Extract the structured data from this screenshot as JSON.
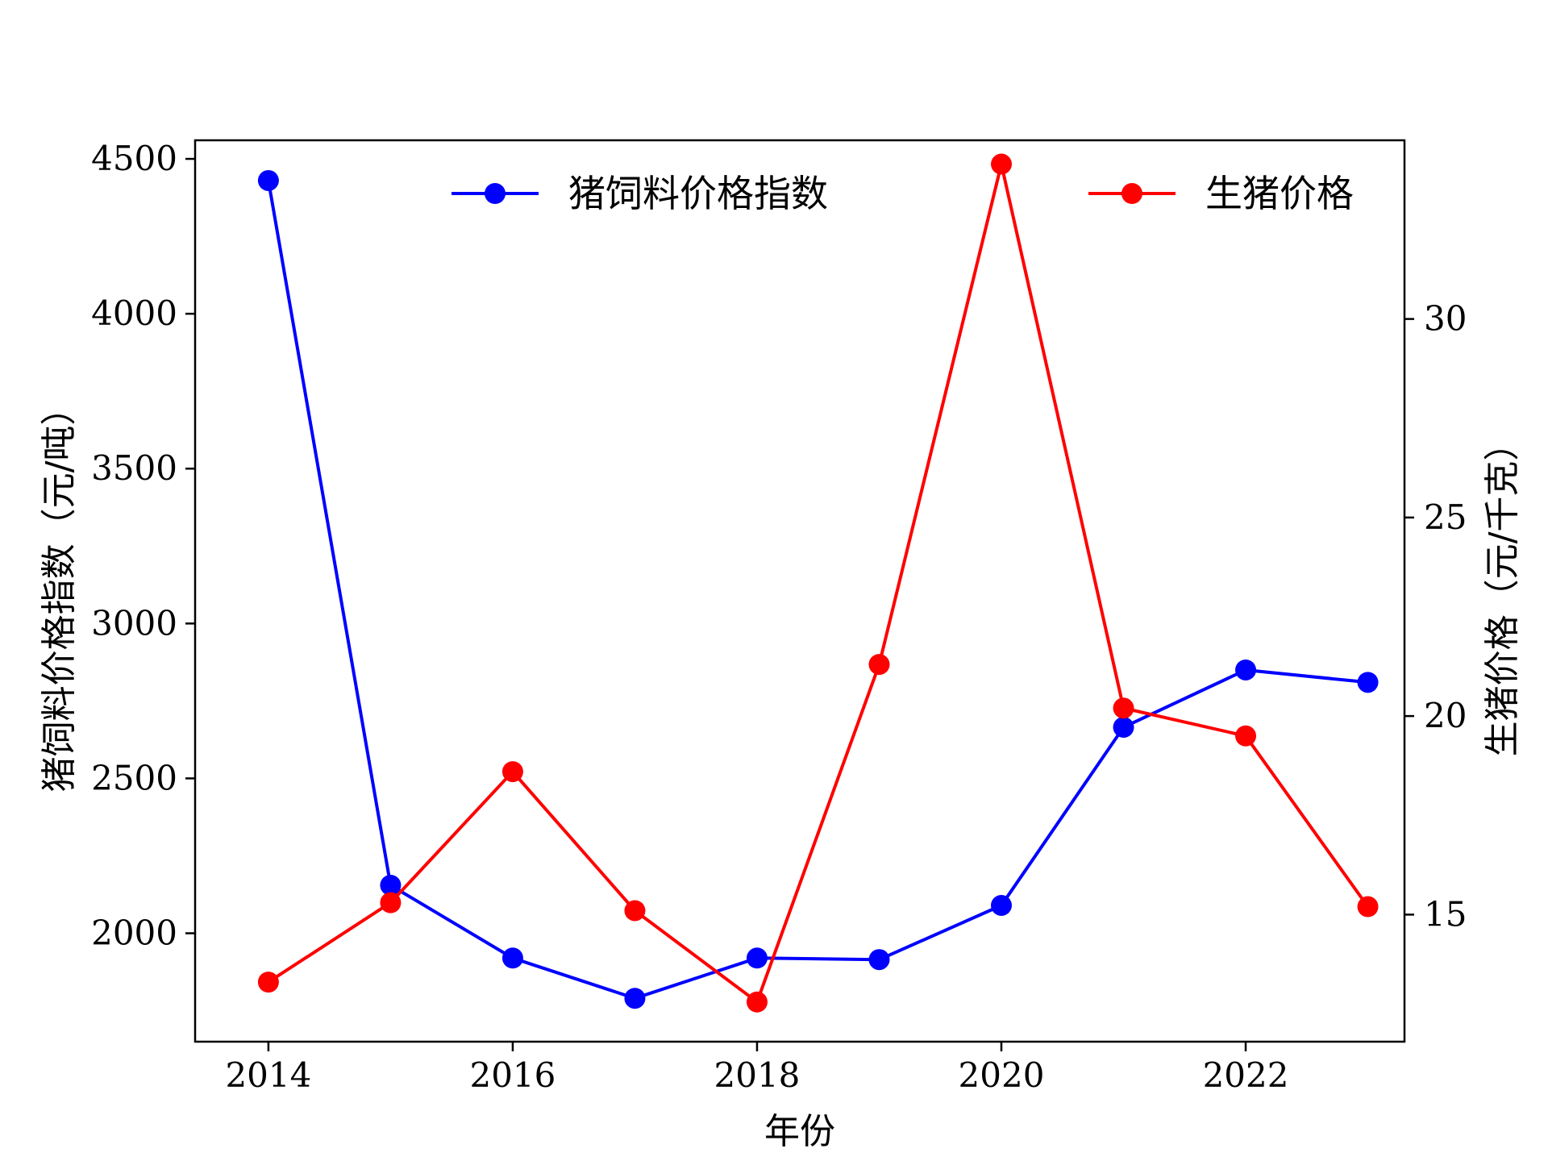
{
  "chart_data": {
    "type": "line",
    "x": [
      2014,
      2015,
      2016,
      2017,
      2018,
      2019,
      2020,
      2021,
      2022,
      2023
    ],
    "xlabel": "年份",
    "xlim": [
      2013.4,
      2023.3
    ],
    "x_ticks": [
      2014,
      2016,
      2018,
      2020,
      2022
    ],
    "y_left": {
      "label": "猪饲料价格指数（元/吨）",
      "lim": [
        1650,
        4560
      ],
      "ticks": [
        2000,
        2500,
        3000,
        3500,
        4000,
        4500
      ]
    },
    "y_right": {
      "label": "生猪价格（元/千克）",
      "lim": [
        11.8,
        34.5
      ],
      "ticks": [
        15,
        20,
        25,
        30
      ]
    },
    "series": [
      {
        "name": "猪饲料价格指数",
        "axis": "left",
        "color": "#0000ff",
        "values": [
          4430,
          2155,
          1920,
          1790,
          1920,
          1915,
          2090,
          2665,
          2850,
          2810
        ]
      },
      {
        "name": "生猪价格",
        "axis": "right",
        "color": "#ff0000",
        "values": [
          13.3,
          15.3,
          18.6,
          15.1,
          12.8,
          21.3,
          33.9,
          20.2,
          19.5,
          15.2
        ]
      }
    ],
    "legend": [
      {
        "series": 0,
        "placement": "top-center"
      },
      {
        "series": 1,
        "placement": "top-right"
      }
    ],
    "grid": false
  }
}
